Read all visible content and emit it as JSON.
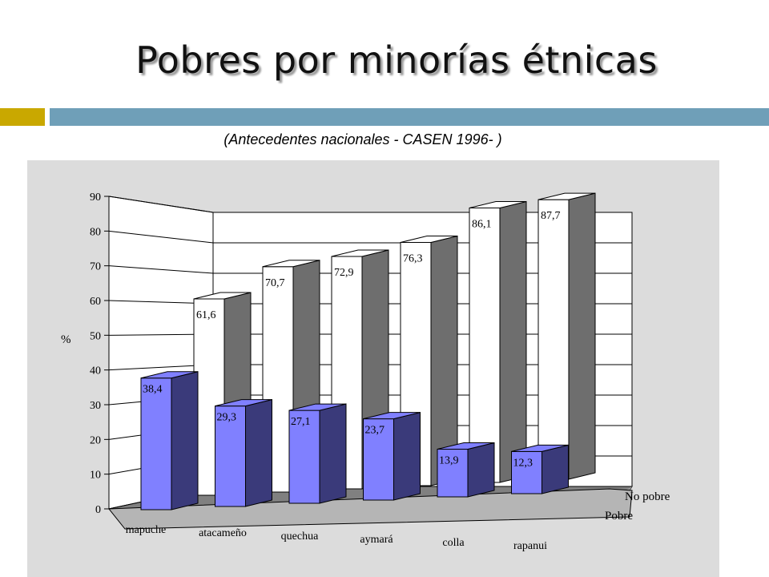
{
  "page": {
    "title": "Pobres por minorías étnicas",
    "subtitle": "(Antecedentes nacionales - CASEN 1996- )"
  },
  "chart_data": {
    "type": "bar",
    "title": "",
    "xlabel": "",
    "ylabel": "%",
    "ylim": [
      0,
      90
    ],
    "yticks": [
      "0",
      "10",
      "20",
      "30",
      "40",
      "50",
      "60",
      "70",
      "80",
      "90"
    ],
    "categories": [
      "mapuche",
      "atacameño",
      "quechua",
      "aymará",
      "colla",
      "rapanui"
    ],
    "series": [
      {
        "name": "Pobre",
        "values": [
          38.4,
          29.3,
          27.1,
          23.7,
          13.9,
          12.3
        ],
        "labels": [
          "38,4",
          "29,3",
          "27,1",
          "23,7",
          "13,9",
          "12,3"
        ],
        "color": "#8080ff"
      },
      {
        "name": "No pobre",
        "values": [
          61.6,
          70.7,
          72.9,
          76.3,
          86.1,
          87.7
        ],
        "labels": [
          "61,6",
          "70,7",
          "72,9",
          "76,3",
          "86,1",
          "87,7"
        ],
        "color": "#ffffff"
      }
    ],
    "grid": true,
    "legend": "right",
    "colors": {
      "pobre_side": "#3a3a7a",
      "no_pobre_side": "#6e6e6e"
    }
  }
}
